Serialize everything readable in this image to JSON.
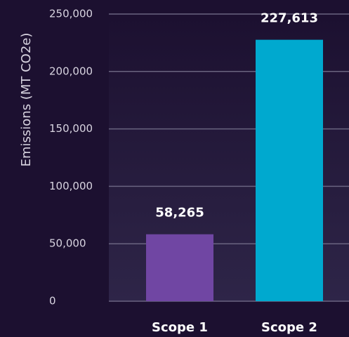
{
  "chart_data": {
    "type": "bar",
    "y_axis_label": "Emissions (MT CO2e)",
    "categories": [
      "Scope 1",
      "Scope 2"
    ],
    "values": [
      58265,
      227613
    ],
    "value_labels": [
      "58,265",
      "227,613"
    ],
    "colors": [
      "#7046a3",
      "#00a9cf"
    ],
    "ylim": [
      0,
      250000
    ],
    "yticks": [
      0,
      {
        "value": 50000,
        "label": "50,000"
      },
      {
        "value": 100000,
        "label": "100,000"
      },
      {
        "value": 150000,
        "label": "150,000"
      },
      {
        "value": 200000,
        "label": "200,000"
      },
      {
        "value": 250000,
        "label": "250,000"
      }
    ],
    "grid": true
  }
}
